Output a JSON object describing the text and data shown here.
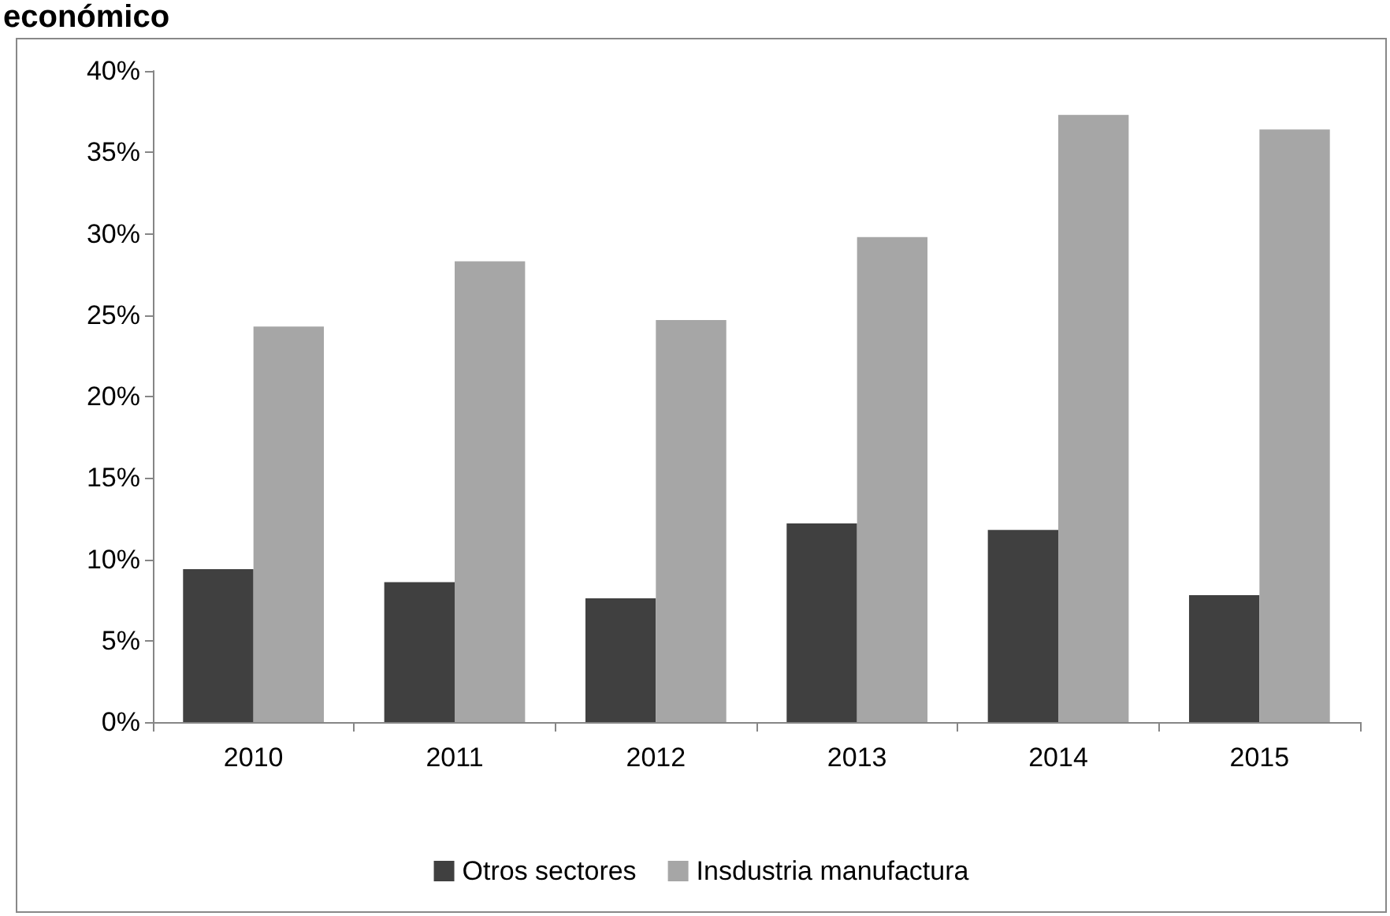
{
  "chart_data": {
    "type": "bar",
    "title": "económico",
    "categories": [
      "2010",
      "2011",
      "2012",
      "2013",
      "2014",
      "2015"
    ],
    "series": [
      {
        "name": "Otros sectores",
        "color": "#404040",
        "values": [
          9.4,
          8.6,
          7.6,
          12.2,
          11.8,
          7.8
        ]
      },
      {
        "name": "Insdustria manufactura",
        "color": "#a6a6a6",
        "values": [
          24.3,
          28.3,
          24.7,
          29.8,
          37.3,
          36.4
        ]
      }
    ],
    "ylim": [
      0,
      40
    ],
    "yticks": [
      {
        "value": 0,
        "label": "0%"
      },
      {
        "value": 5,
        "label": "5%"
      },
      {
        "value": 10,
        "label": "10%"
      },
      {
        "value": 15,
        "label": "15%"
      },
      {
        "value": 20,
        "label": "20%"
      },
      {
        "value": 25,
        "label": "25%"
      },
      {
        "value": 30,
        "label": "30%"
      },
      {
        "value": 35,
        "label": "35%"
      },
      {
        "value": 40,
        "label": "40%"
      }
    ],
    "grid": false,
    "legend": "bottom"
  }
}
